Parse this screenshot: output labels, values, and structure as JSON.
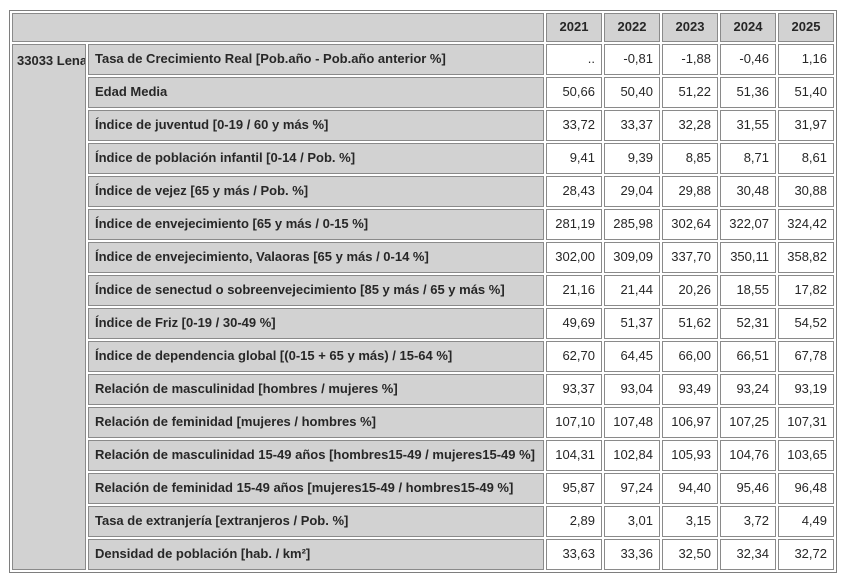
{
  "chart_data": {
    "type": "table",
    "municipality": "33033 Lena",
    "columns": [
      "2021",
      "2022",
      "2023",
      "2024",
      "2025"
    ],
    "rows": [
      {
        "label": "Tasa de Crecimiento Real [Pob.año - Pob.año anterior %]",
        "values": [
          "..",
          "-0,81",
          "-1,88",
          "-0,46",
          "1,16"
        ]
      },
      {
        "label": "Edad Media",
        "values": [
          "50,66",
          "50,40",
          "51,22",
          "51,36",
          "51,40"
        ]
      },
      {
        "label": "Índice de juventud [0-19 / 60 y más %]",
        "values": [
          "33,72",
          "33,37",
          "32,28",
          "31,55",
          "31,97"
        ]
      },
      {
        "label": "Índice de población infantil [0-14 / Pob. %]",
        "values": [
          "9,41",
          "9,39",
          "8,85",
          "8,71",
          "8,61"
        ]
      },
      {
        "label": "Índice de vejez [65 y más / Pob. %]",
        "values": [
          "28,43",
          "29,04",
          "29,88",
          "30,48",
          "30,88"
        ]
      },
      {
        "label": "Índice de envejecimiento [65 y más / 0-15 %]",
        "values": [
          "281,19",
          "285,98",
          "302,64",
          "322,07",
          "324,42"
        ]
      },
      {
        "label": "Índice de envejecimiento, Valaoras [65 y más / 0-14 %]",
        "values": [
          "302,00",
          "309,09",
          "337,70",
          "350,11",
          "358,82"
        ]
      },
      {
        "label": "Índice de senectud o sobreenvejecimiento [85 y más / 65 y más %]",
        "values": [
          "21,16",
          "21,44",
          "20,26",
          "18,55",
          "17,82"
        ]
      },
      {
        "label": "Índice de Friz [0-19 / 30-49 %]",
        "values": [
          "49,69",
          "51,37",
          "51,62",
          "52,31",
          "54,52"
        ]
      },
      {
        "label": "Índice de dependencia global [(0-15 + 65 y más) / 15-64 %]",
        "values": [
          "62,70",
          "64,45",
          "66,00",
          "66,51",
          "67,78"
        ]
      },
      {
        "label": "Relación de masculinidad [hombres / mujeres %]",
        "values": [
          "93,37",
          "93,04",
          "93,49",
          "93,24",
          "93,19"
        ]
      },
      {
        "label": "Relación de feminidad [mujeres / hombres %]",
        "values": [
          "107,10",
          "107,48",
          "106,97",
          "107,25",
          "107,31"
        ]
      },
      {
        "label": "Relación de masculinidad 15-49 años [hombres15-49 / mujeres15-49 %]",
        "values": [
          "104,31",
          "102,84",
          "105,93",
          "104,76",
          "103,65"
        ]
      },
      {
        "label": "Relación de feminidad 15-49 años [mujeres15-49 / hombres15-49 %]",
        "values": [
          "95,87",
          "97,24",
          "94,40",
          "95,46",
          "96,48"
        ]
      },
      {
        "label": "Tasa de extranjería [extranjeros / Pob. %]",
        "values": [
          "2,89",
          "3,01",
          "3,15",
          "3,72",
          "4,49"
        ]
      },
      {
        "label": "Densidad de población [hab. / km²]",
        "values": [
          "33,63",
          "33,36",
          "32,50",
          "32,34",
          "32,72"
        ]
      }
    ]
  },
  "colors": {
    "header_bg": "#d2d2d2",
    "cell_bg": "#ffffff",
    "border": "#8a8a8a",
    "text": "#272727"
  }
}
